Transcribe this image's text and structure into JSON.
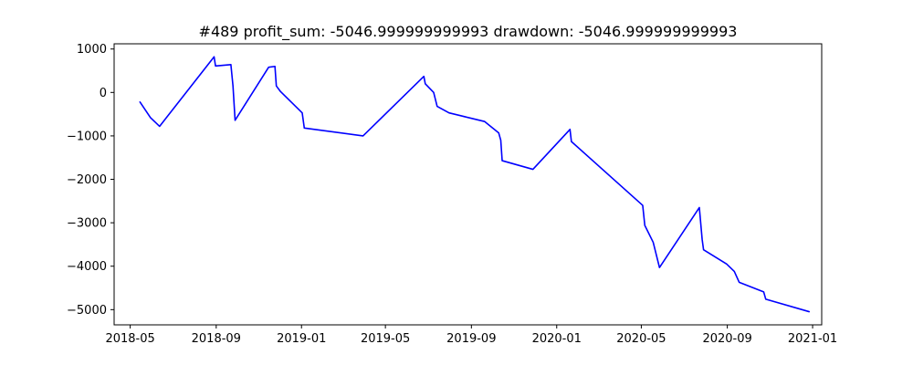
{
  "chart_data": {
    "type": "line",
    "title": "#489   profit_sum: -5046.999999999993 drawdown: -5046.999999999993",
    "xlabel": "",
    "ylabel": "",
    "x_axis_type": "date",
    "xlim": [
      "2018-04-08",
      "2021-01-14"
    ],
    "ylim": [
      -5350,
      1120
    ],
    "x_ticks": [
      "2018-05",
      "2018-09",
      "2019-01",
      "2019-05",
      "2019-09",
      "2020-01",
      "2020-05",
      "2020-09",
      "2021-01"
    ],
    "y_ticks": [
      1000,
      0,
      -1000,
      -2000,
      -3000,
      -4000,
      -5000
    ],
    "grid": false,
    "legend": "none",
    "series": [
      {
        "color": "#0000ff",
        "points": [
          [
            "2018-05-15",
            -220
          ],
          [
            "2018-05-30",
            -580
          ],
          [
            "2018-06-12",
            -780
          ],
          [
            "2018-08-29",
            820
          ],
          [
            "2018-08-31",
            610
          ],
          [
            "2018-09-22",
            640
          ],
          [
            "2018-09-25",
            150
          ],
          [
            "2018-09-28",
            -640
          ],
          [
            "2018-11-15",
            580
          ],
          [
            "2018-11-24",
            600
          ],
          [
            "2018-11-26",
            150
          ],
          [
            "2018-12-02",
            20
          ],
          [
            "2019-01-02",
            -470
          ],
          [
            "2019-01-05",
            -820
          ],
          [
            "2019-03-30",
            -1000
          ],
          [
            "2019-06-25",
            370
          ],
          [
            "2019-06-27",
            200
          ],
          [
            "2019-07-09",
            0
          ],
          [
            "2019-07-14",
            -320
          ],
          [
            "2019-07-31",
            -470
          ],
          [
            "2019-09-20",
            -670
          ],
          [
            "2019-10-10",
            -930
          ],
          [
            "2019-10-13",
            -1100
          ],
          [
            "2019-10-15",
            -1570
          ],
          [
            "2019-11-28",
            -1770
          ],
          [
            "2020-01-20",
            -850
          ],
          [
            "2020-01-22",
            -1130
          ],
          [
            "2020-05-03",
            -2600
          ],
          [
            "2020-05-06",
            -3060
          ],
          [
            "2020-05-18",
            -3450
          ],
          [
            "2020-05-27",
            -4030
          ],
          [
            "2020-07-23",
            -2650
          ],
          [
            "2020-07-27",
            -3380
          ],
          [
            "2020-07-29",
            -3620
          ],
          [
            "2020-08-31",
            -3950
          ],
          [
            "2020-09-11",
            -4120
          ],
          [
            "2020-09-18",
            -4370
          ],
          [
            "2020-10-23",
            -4590
          ],
          [
            "2020-10-26",
            -4760
          ],
          [
            "2020-12-27",
            -5047
          ]
        ]
      }
    ]
  }
}
